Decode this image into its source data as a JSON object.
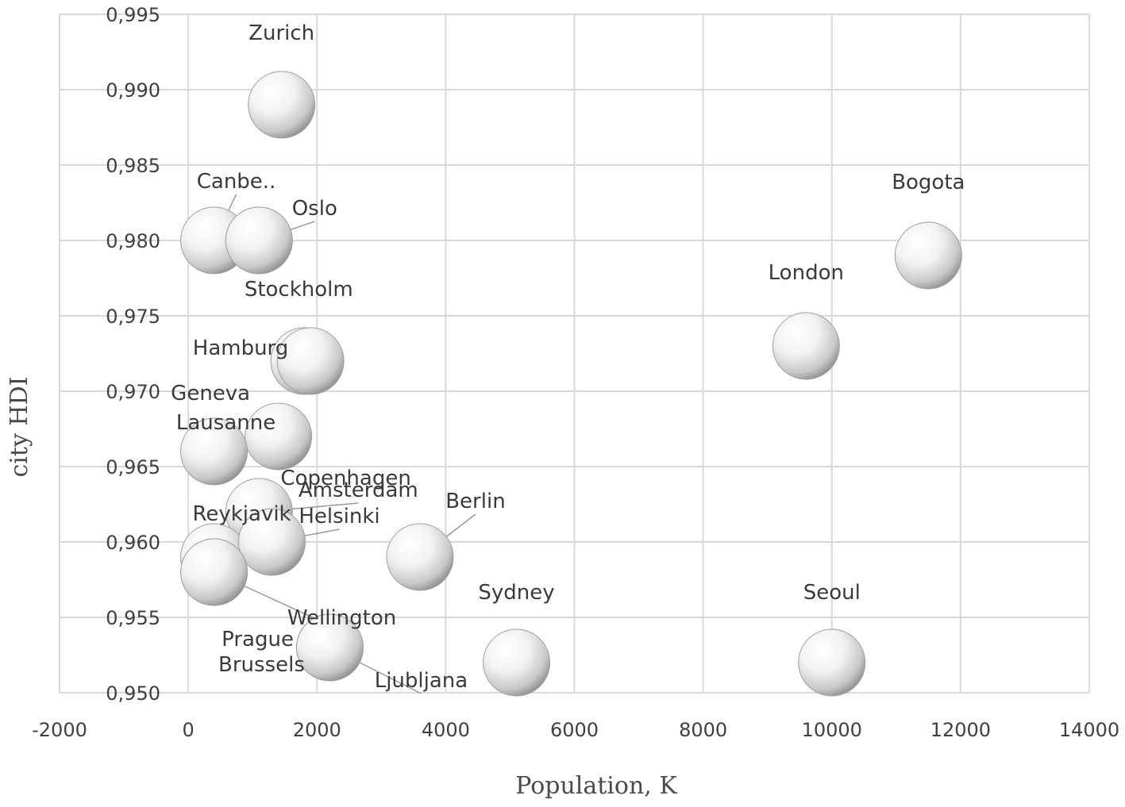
{
  "chart_data": {
    "type": "scatter",
    "xlabel": "Population, K",
    "ylabel": "city HDI",
    "xlim": [
      -2000,
      14000
    ],
    "ylim": [
      0.95,
      0.995
    ],
    "xticks": [
      -2000,
      0,
      2000,
      4000,
      6000,
      8000,
      10000,
      12000,
      14000
    ],
    "yticks": [
      "0,950",
      "0,955",
      "0,960",
      "0,965",
      "0,970",
      "0,975",
      "0,980",
      "0,985",
      "0,990",
      "0,995"
    ],
    "grid": true,
    "legend": "none",
    "points": [
      {
        "label": "Zurich",
        "x": 1450,
        "y": 0.989
      },
      {
        "label": "Canbe..",
        "x": 400,
        "y": 0.98
      },
      {
        "label": "Oslo",
        "x": 1100,
        "y": 0.98
      },
      {
        "label": "Stockholm",
        "x": 1100,
        "y": 0.98
      },
      {
        "label": "Bogota",
        "x": 11500,
        "y": 0.979
      },
      {
        "label": "London",
        "x": 9600,
        "y": 0.973
      },
      {
        "label": "Hamburg",
        "x": 1800,
        "y": 0.972
      },
      {
        "label": "Geneva",
        "x": 1900,
        "y": 0.972
      },
      {
        "label": "Copenhagen",
        "x": 1400,
        "y": 0.967
      },
      {
        "label": "Lausanne",
        "x": 400,
        "y": 0.966
      },
      {
        "label": "Amsterdam",
        "x": 1100,
        "y": 0.962
      },
      {
        "label": "Reykjavik",
        "x": 400,
        "y": 0.959
      },
      {
        "label": "Helsinki",
        "x": 1300,
        "y": 0.96
      },
      {
        "label": "Berlin",
        "x": 3600,
        "y": 0.959
      },
      {
        "label": "Wellington",
        "x": 400,
        "y": 0.958
      },
      {
        "label": "Prague",
        "x": 400,
        "y": 0.958
      },
      {
        "label": "Ljubljana",
        "x": 2200,
        "y": 0.953
      },
      {
        "label": "Brussels",
        "x": 2200,
        "y": 0.953
      },
      {
        "label": "Sydney",
        "x": 5100,
        "y": 0.952
      },
      {
        "label": "Seoul",
        "x": 10000,
        "y": 0.952
      }
    ]
  }
}
